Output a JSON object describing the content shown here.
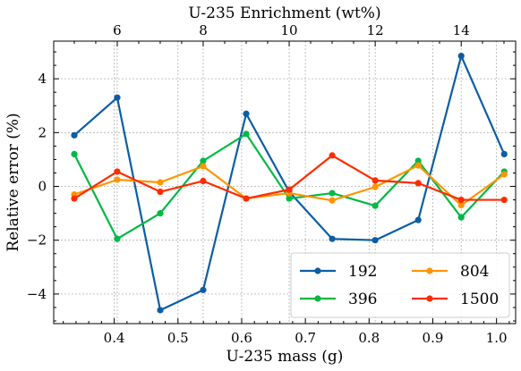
{
  "chart_data": {
    "type": "line",
    "xlabel": "U-235 mass (g)",
    "x2label": "U-235 Enrichment (wt%)",
    "ylabel": "Relative error (%)",
    "xlim": [
      0.305,
      1.03
    ],
    "ylim": [
      -5.1,
      5.4
    ],
    "xticks": [
      0.4,
      0.5,
      0.6,
      0.7,
      0.8,
      0.9,
      1.0
    ],
    "xtick_labels": [
      "0.4",
      "0.5",
      "0.6",
      "0.7",
      "0.8",
      "0.9",
      "1.0"
    ],
    "x2_ticks_mass": [
      0.4047,
      0.5396,
      0.6746,
      0.8096,
      0.9446
    ],
    "x2tick_labels": [
      "6",
      "8",
      "10",
      "12",
      "14"
    ],
    "yticks": [
      -4,
      -2,
      0,
      2,
      4
    ],
    "ytick_labels": [
      "−4",
      "−2",
      "0",
      "2",
      "4"
    ],
    "grid": true,
    "legend_position": "bottom-right",
    "legend_columns": 2,
    "x": [
      0.3373,
      0.4047,
      0.4722,
      0.5396,
      0.6071,
      0.6746,
      0.7421,
      0.8096,
      0.8771,
      0.9446,
      1.0121
    ],
    "series": [
      {
        "name": "192",
        "color": "#0c5da5",
        "values": [
          1.9,
          3.3,
          -4.6,
          -3.85,
          2.7,
          -0.2,
          -1.95,
          -2.0,
          -1.25,
          4.85,
          1.2
        ]
      },
      {
        "name": "396",
        "color": "#00b945",
        "values": [
          1.2,
          -1.95,
          -1.0,
          0.95,
          1.95,
          -0.45,
          -0.25,
          -0.72,
          0.95,
          -1.15,
          0.55
        ]
      },
      {
        "name": "804",
        "color": "#ff9500",
        "values": [
          -0.3,
          0.25,
          0.15,
          0.75,
          -0.45,
          -0.25,
          -0.52,
          -0.02,
          0.78,
          -0.7,
          0.45
        ]
      },
      {
        "name": "1500",
        "color": "#ff2c00",
        "values": [
          -0.45,
          0.55,
          -0.2,
          0.2,
          -0.45,
          -0.12,
          1.15,
          0.22,
          0.12,
          -0.5,
          -0.5
        ]
      }
    ]
  }
}
